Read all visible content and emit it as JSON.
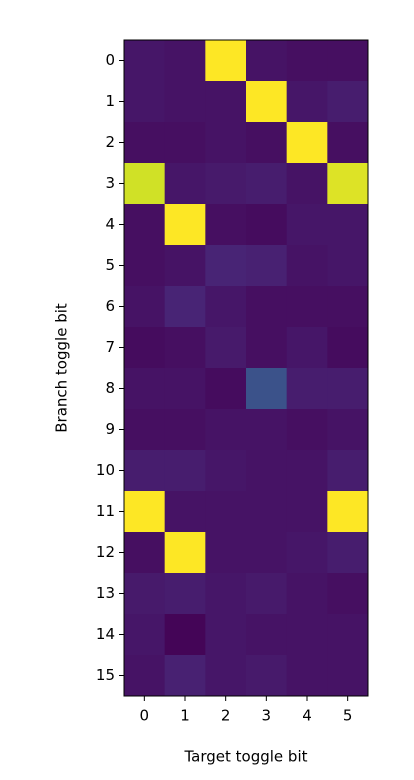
{
  "chart_data": {
    "type": "heatmap",
    "xlabel": "Target toggle bit",
    "ylabel": "Branch toggle bit",
    "xticks": [
      0,
      1,
      2,
      3,
      4,
      5
    ],
    "yticks": [
      0,
      1,
      2,
      3,
      4,
      5,
      6,
      7,
      8,
      9,
      10,
      11,
      12,
      13,
      14,
      15
    ],
    "colormap": "viridis",
    "vlim": [
      0,
      1
    ],
    "values": [
      [
        0.06,
        0.05,
        1.0,
        0.05,
        0.04,
        0.04
      ],
      [
        0.06,
        0.05,
        0.05,
        1.0,
        0.06,
        0.08
      ],
      [
        0.04,
        0.04,
        0.05,
        0.04,
        1.0,
        0.04
      ],
      [
        0.93,
        0.06,
        0.07,
        0.08,
        0.05,
        0.95
      ],
      [
        0.04,
        1.0,
        0.04,
        0.03,
        0.06,
        0.06
      ],
      [
        0.04,
        0.05,
        0.1,
        0.09,
        0.05,
        0.06
      ],
      [
        0.05,
        0.1,
        0.06,
        0.04,
        0.04,
        0.04
      ],
      [
        0.03,
        0.04,
        0.07,
        0.04,
        0.06,
        0.03
      ],
      [
        0.05,
        0.05,
        0.03,
        0.25,
        0.08,
        0.08
      ],
      [
        0.04,
        0.04,
        0.05,
        0.05,
        0.04,
        0.05
      ],
      [
        0.08,
        0.08,
        0.06,
        0.05,
        0.05,
        0.08
      ],
      [
        1.0,
        0.05,
        0.05,
        0.05,
        0.05,
        1.0
      ],
      [
        0.04,
        1.0,
        0.05,
        0.05,
        0.06,
        0.08
      ],
      [
        0.07,
        0.08,
        0.06,
        0.07,
        0.05,
        0.04
      ],
      [
        0.06,
        0.01,
        0.06,
        0.05,
        0.05,
        0.05
      ],
      [
        0.05,
        0.09,
        0.06,
        0.07,
        0.05,
        0.05
      ]
    ]
  }
}
